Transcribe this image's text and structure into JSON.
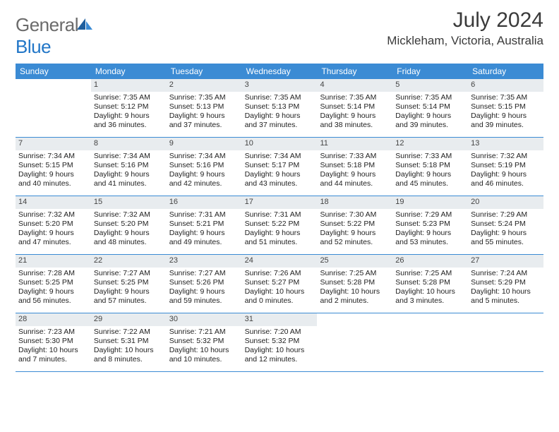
{
  "brand": {
    "part1": "General",
    "part2": "Blue"
  },
  "title": "July 2024",
  "location": "Mickleham, Victoria, Australia",
  "colors": {
    "header_bg": "#3b8bd4",
    "header_text": "#ffffff",
    "daynum_bg": "#e8ecef",
    "border": "#3b8bd4",
    "brand_gray": "#6b6b6b",
    "brand_blue": "#2176c7",
    "text": "#222222"
  },
  "day_headers": [
    "Sunday",
    "Monday",
    "Tuesday",
    "Wednesday",
    "Thursday",
    "Friday",
    "Saturday"
  ],
  "weeks": [
    [
      {
        "n": "",
        "lines": []
      },
      {
        "n": "1",
        "lines": [
          "Sunrise: 7:35 AM",
          "Sunset: 5:12 PM",
          "Daylight: 9 hours",
          "and 36 minutes."
        ]
      },
      {
        "n": "2",
        "lines": [
          "Sunrise: 7:35 AM",
          "Sunset: 5:13 PM",
          "Daylight: 9 hours",
          "and 37 minutes."
        ]
      },
      {
        "n": "3",
        "lines": [
          "Sunrise: 7:35 AM",
          "Sunset: 5:13 PM",
          "Daylight: 9 hours",
          "and 37 minutes."
        ]
      },
      {
        "n": "4",
        "lines": [
          "Sunrise: 7:35 AM",
          "Sunset: 5:14 PM",
          "Daylight: 9 hours",
          "and 38 minutes."
        ]
      },
      {
        "n": "5",
        "lines": [
          "Sunrise: 7:35 AM",
          "Sunset: 5:14 PM",
          "Daylight: 9 hours",
          "and 39 minutes."
        ]
      },
      {
        "n": "6",
        "lines": [
          "Sunrise: 7:35 AM",
          "Sunset: 5:15 PM",
          "Daylight: 9 hours",
          "and 39 minutes."
        ]
      }
    ],
    [
      {
        "n": "7",
        "lines": [
          "Sunrise: 7:34 AM",
          "Sunset: 5:15 PM",
          "Daylight: 9 hours",
          "and 40 minutes."
        ]
      },
      {
        "n": "8",
        "lines": [
          "Sunrise: 7:34 AM",
          "Sunset: 5:16 PM",
          "Daylight: 9 hours",
          "and 41 minutes."
        ]
      },
      {
        "n": "9",
        "lines": [
          "Sunrise: 7:34 AM",
          "Sunset: 5:16 PM",
          "Daylight: 9 hours",
          "and 42 minutes."
        ]
      },
      {
        "n": "10",
        "lines": [
          "Sunrise: 7:34 AM",
          "Sunset: 5:17 PM",
          "Daylight: 9 hours",
          "and 43 minutes."
        ]
      },
      {
        "n": "11",
        "lines": [
          "Sunrise: 7:33 AM",
          "Sunset: 5:18 PM",
          "Daylight: 9 hours",
          "and 44 minutes."
        ]
      },
      {
        "n": "12",
        "lines": [
          "Sunrise: 7:33 AM",
          "Sunset: 5:18 PM",
          "Daylight: 9 hours",
          "and 45 minutes."
        ]
      },
      {
        "n": "13",
        "lines": [
          "Sunrise: 7:32 AM",
          "Sunset: 5:19 PM",
          "Daylight: 9 hours",
          "and 46 minutes."
        ]
      }
    ],
    [
      {
        "n": "14",
        "lines": [
          "Sunrise: 7:32 AM",
          "Sunset: 5:20 PM",
          "Daylight: 9 hours",
          "and 47 minutes."
        ]
      },
      {
        "n": "15",
        "lines": [
          "Sunrise: 7:32 AM",
          "Sunset: 5:20 PM",
          "Daylight: 9 hours",
          "and 48 minutes."
        ]
      },
      {
        "n": "16",
        "lines": [
          "Sunrise: 7:31 AM",
          "Sunset: 5:21 PM",
          "Daylight: 9 hours",
          "and 49 minutes."
        ]
      },
      {
        "n": "17",
        "lines": [
          "Sunrise: 7:31 AM",
          "Sunset: 5:22 PM",
          "Daylight: 9 hours",
          "and 51 minutes."
        ]
      },
      {
        "n": "18",
        "lines": [
          "Sunrise: 7:30 AM",
          "Sunset: 5:22 PM",
          "Daylight: 9 hours",
          "and 52 minutes."
        ]
      },
      {
        "n": "19",
        "lines": [
          "Sunrise: 7:29 AM",
          "Sunset: 5:23 PM",
          "Daylight: 9 hours",
          "and 53 minutes."
        ]
      },
      {
        "n": "20",
        "lines": [
          "Sunrise: 7:29 AM",
          "Sunset: 5:24 PM",
          "Daylight: 9 hours",
          "and 55 minutes."
        ]
      }
    ],
    [
      {
        "n": "21",
        "lines": [
          "Sunrise: 7:28 AM",
          "Sunset: 5:25 PM",
          "Daylight: 9 hours",
          "and 56 minutes."
        ]
      },
      {
        "n": "22",
        "lines": [
          "Sunrise: 7:27 AM",
          "Sunset: 5:25 PM",
          "Daylight: 9 hours",
          "and 57 minutes."
        ]
      },
      {
        "n": "23",
        "lines": [
          "Sunrise: 7:27 AM",
          "Sunset: 5:26 PM",
          "Daylight: 9 hours",
          "and 59 minutes."
        ]
      },
      {
        "n": "24",
        "lines": [
          "Sunrise: 7:26 AM",
          "Sunset: 5:27 PM",
          "Daylight: 10 hours",
          "and 0 minutes."
        ]
      },
      {
        "n": "25",
        "lines": [
          "Sunrise: 7:25 AM",
          "Sunset: 5:28 PM",
          "Daylight: 10 hours",
          "and 2 minutes."
        ]
      },
      {
        "n": "26",
        "lines": [
          "Sunrise: 7:25 AM",
          "Sunset: 5:28 PM",
          "Daylight: 10 hours",
          "and 3 minutes."
        ]
      },
      {
        "n": "27",
        "lines": [
          "Sunrise: 7:24 AM",
          "Sunset: 5:29 PM",
          "Daylight: 10 hours",
          "and 5 minutes."
        ]
      }
    ],
    [
      {
        "n": "28",
        "lines": [
          "Sunrise: 7:23 AM",
          "Sunset: 5:30 PM",
          "Daylight: 10 hours",
          "and 7 minutes."
        ]
      },
      {
        "n": "29",
        "lines": [
          "Sunrise: 7:22 AM",
          "Sunset: 5:31 PM",
          "Daylight: 10 hours",
          "and 8 minutes."
        ]
      },
      {
        "n": "30",
        "lines": [
          "Sunrise: 7:21 AM",
          "Sunset: 5:32 PM",
          "Daylight: 10 hours",
          "and 10 minutes."
        ]
      },
      {
        "n": "31",
        "lines": [
          "Sunrise: 7:20 AM",
          "Sunset: 5:32 PM",
          "Daylight: 10 hours",
          "and 12 minutes."
        ]
      },
      {
        "n": "",
        "lines": []
      },
      {
        "n": "",
        "lines": []
      },
      {
        "n": "",
        "lines": []
      }
    ]
  ]
}
